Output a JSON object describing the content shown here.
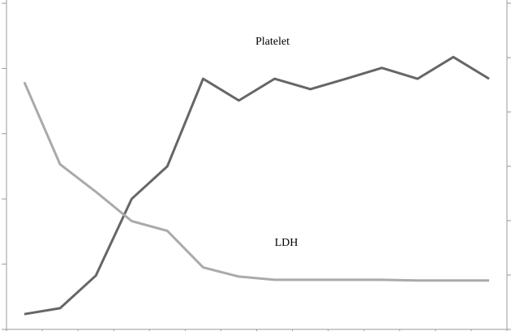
{
  "chart_data": {
    "type": "line",
    "categories": [
      null,
      null,
      null,
      null,
      null,
      null,
      null,
      null,
      null,
      null,
      null,
      null,
      null,
      null
    ],
    "series": [
      {
        "name": "Platelet",
        "color": "#666666",
        "axis": "y2",
        "values": [
          0.28,
          0.39,
          0.99,
          2.4,
          3.0,
          4.61,
          4.21,
          4.61,
          4.42,
          4.61,
          4.81,
          4.61,
          5.01,
          4.61
        ]
      },
      {
        "name": "LDH",
        "color": "#aaaaaa",
        "values": [
          3.79,
          2.53,
          2.11,
          1.66,
          1.51,
          0.95,
          0.81,
          0.76,
          0.76,
          0.76,
          0.76,
          0.75,
          0.75,
          0.75
        ]
      }
    ],
    "ylim": [
      0,
      5
    ],
    "yticks": [
      0,
      1,
      2,
      3,
      4,
      5
    ],
    "y2lim": [
      0,
      6
    ],
    "y2ticks": [
      0,
      1,
      2,
      3,
      4,
      5,
      6
    ],
    "grid": false
  }
}
